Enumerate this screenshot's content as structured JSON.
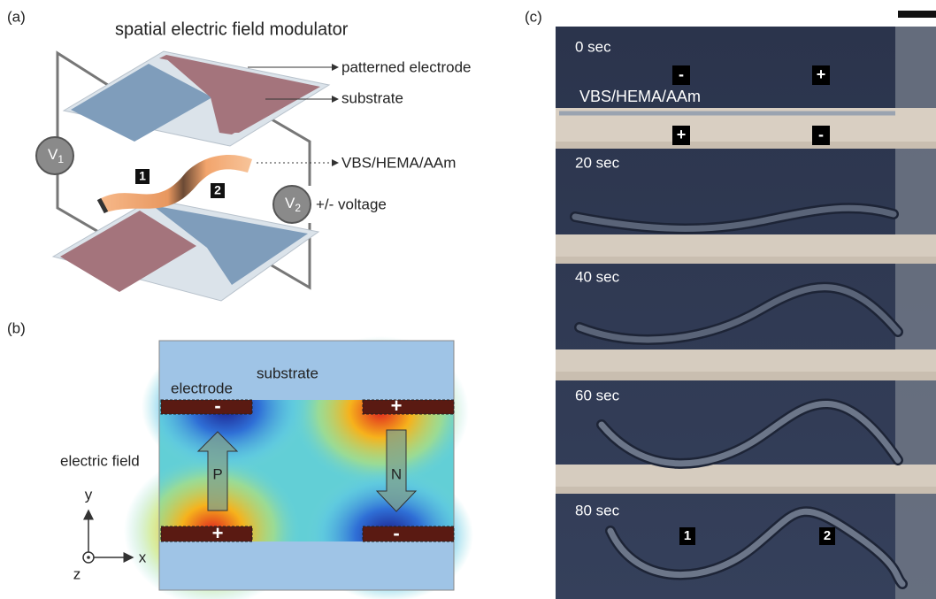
{
  "panel_a": {
    "label": "(a)",
    "title": "spatial electric field modulator",
    "callouts": [
      "patterned electrode",
      "substrate",
      "VBS/HEMA/AAm",
      "+/- voltage"
    ],
    "sources": [
      {
        "symbol": "V",
        "subscript": "1"
      },
      {
        "symbol": "V",
        "subscript": "2"
      }
    ],
    "segments": [
      "1",
      "2"
    ]
  },
  "panel_b": {
    "label": "(b)",
    "region_labels": [
      "substrate",
      "electrode",
      "electric field"
    ],
    "electrodes": [
      "-",
      "+",
      "+",
      "-"
    ],
    "polarities": [
      "P",
      "N"
    ],
    "axes": [
      "y",
      "x",
      "z"
    ]
  },
  "panel_c": {
    "label": "(c)",
    "frames": [
      "0 sec",
      "20 sec",
      "40 sec",
      "60 sec",
      "80 sec"
    ],
    "top_signs": [
      "-",
      "+"
    ],
    "bottom_signs": [
      "+",
      "-"
    ],
    "material": "VBS/HEMA/AAm",
    "segments": [
      "1",
      "2"
    ]
  }
}
